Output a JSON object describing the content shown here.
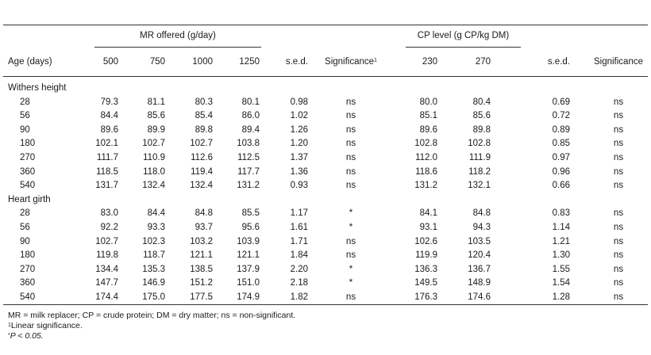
{
  "header": {
    "group1": "MR offered (g/day)",
    "group2": "CP level (g CP/kg DM)",
    "columns": [
      "Age (days)",
      "500",
      "750",
      "1000",
      "1250",
      "s.e.d.",
      "Significance",
      "230",
      "270",
      "s.e.d.",
      "Significance"
    ],
    "significance_sup": "1"
  },
  "sections": [
    {
      "title": "Withers height",
      "rows": [
        [
          "28",
          "79.3",
          "81.1",
          "80.3",
          "80.1",
          "0.98",
          "ns",
          "80.0",
          "80.4",
          "0.69",
          "ns"
        ],
        [
          "56",
          "84.4",
          "85.6",
          "85.4",
          "86.0",
          "1.02",
          "ns",
          "85.1",
          "85.6",
          "0.72",
          "ns"
        ],
        [
          "90",
          "89.6",
          "89.9",
          "89.8",
          "89.4",
          "1.26",
          "ns",
          "89.6",
          "89.8",
          "0.89",
          "ns"
        ],
        [
          "180",
          "102.1",
          "102.7",
          "102.7",
          "103.8",
          "1.20",
          "ns",
          "102.8",
          "102.8",
          "0.85",
          "ns"
        ],
        [
          "270",
          "111.7",
          "110.9",
          "112.6",
          "112.5",
          "1.37",
          "ns",
          "112.0",
          "111.9",
          "0.97",
          "ns"
        ],
        [
          "360",
          "118.5",
          "118.0",
          "119.4",
          "117.7",
          "1.36",
          "ns",
          "118.6",
          "118.2",
          "0.96",
          "ns"
        ],
        [
          "540",
          "131.7",
          "132.4",
          "132.4",
          "131.2",
          "0.93",
          "ns",
          "131.2",
          "132.1",
          "0.66",
          "ns"
        ]
      ]
    },
    {
      "title": "Heart girth",
      "rows": [
        [
          "28",
          "83.0",
          "84.4",
          "84.8",
          "85.5",
          "1.17",
          "*",
          "84.1",
          "84.8",
          "0.83",
          "ns"
        ],
        [
          "56",
          "92.2",
          "93.3",
          "93.7",
          "95.6",
          "1.61",
          "*",
          "93.1",
          "94.3",
          "1.14",
          "ns"
        ],
        [
          "90",
          "102.7",
          "102.3",
          "103.2",
          "103.9",
          "1.71",
          "ns",
          "102.6",
          "103.5",
          "1.21",
          "ns"
        ],
        [
          "180",
          "119.8",
          "118.7",
          "121.1",
          "121.1",
          "1.84",
          "ns",
          "119.9",
          "120.4",
          "1.30",
          "ns"
        ],
        [
          "270",
          "134.4",
          "135.3",
          "138.5",
          "137.9",
          "2.20",
          "*",
          "136.3",
          "136.7",
          "1.55",
          "ns"
        ],
        [
          "360",
          "147.7",
          "146.9",
          "151.2",
          "151.0",
          "2.18",
          "*",
          "149.5",
          "148.9",
          "1.54",
          "ns"
        ],
        [
          "540",
          "174.4",
          "175.0",
          "177.5",
          "174.9",
          "1.82",
          "ns",
          "176.3",
          "174.6",
          "1.28",
          "ns"
        ]
      ]
    }
  ],
  "footnotes": {
    "abbrev": "MR = milk replacer; CP = crude protein; DM = dry matter; ns = non-significant.",
    "f1_mark": "1",
    "f1_text": "Linear significance.",
    "f2_mark": "*",
    "f2_text": "P < 0.05."
  }
}
